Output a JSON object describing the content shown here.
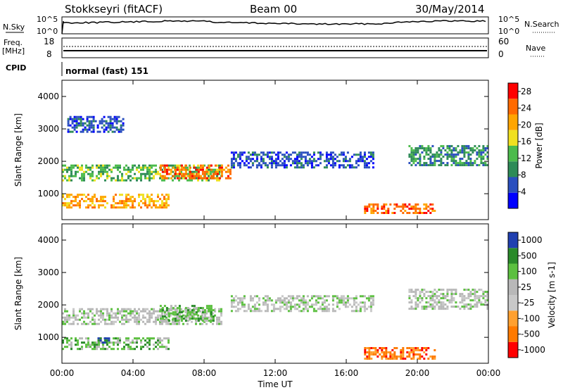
{
  "header": {
    "station": "Stokkseyri (fitACF)",
    "beam": "Beam 00",
    "date": "30/May/2014"
  },
  "labels": {
    "nsky": "N.Sky",
    "nsearch": "N.Search",
    "freq": "Freq.",
    "freq_unit": "[MHz]",
    "nave": "Nave",
    "cpid": "CPID",
    "cpid_value": "normal (fast) 151"
  },
  "noise_ticks": {
    "top": "10^5",
    "bottom": "10^0"
  },
  "freq_ticks": {
    "left_top": "18",
    "left_bottom": "8",
    "right_top": "60",
    "right_bottom": "0"
  },
  "colors": {
    "power": [
      "#0000ff",
      "#2a4fbf",
      "#2e8b57",
      "#4cbb4c",
      "#f0e020",
      "#ffa500",
      "#ff6a00",
      "#ff0000"
    ],
    "velocity": [
      "#2040b0",
      "#2a8a2a",
      "#5cc040",
      "#b8b8b8",
      "#c8c8c8",
      "#ffa030",
      "#ff7a00",
      "#ff0000"
    ]
  },
  "chart_data": [
    {
      "type": "heatmap",
      "title": "Power",
      "ylabel": "Slant Range [km]",
      "xlabel": "",
      "x_ticks": [
        "00:00",
        "04:00",
        "08:00",
        "12:00",
        "16:00",
        "20:00",
        "00:00"
      ],
      "y_ticks": [
        "1000",
        "2000",
        "3000",
        "4000"
      ],
      "ylim": [
        200,
        4500
      ],
      "colorbar": {
        "label": "Power [dB]",
        "ticks": [
          "4",
          "8",
          "12",
          "16",
          "20",
          "24",
          "28"
        ],
        "range": [
          0,
          30
        ]
      },
      "bands": [
        {
          "t0": 0.0,
          "t1": 9.0,
          "r0": 1400,
          "r1": 1900,
          "level": 3
        },
        {
          "t0": 0.0,
          "t1": 6.0,
          "r0": 600,
          "r1": 1000,
          "level": 5
        },
        {
          "t0": 5.5,
          "t1": 9.5,
          "r0": 1500,
          "r1": 1900,
          "level": 6
        },
        {
          "t0": 9.5,
          "t1": 17.5,
          "r0": 1800,
          "r1": 2300,
          "level": 1
        },
        {
          "t0": 17.0,
          "t1": 21.0,
          "r0": 400,
          "r1": 700,
          "level": 6
        },
        {
          "t0": 19.5,
          "t1": 24.0,
          "r0": 1900,
          "r1": 2500,
          "level": 2
        },
        {
          "t0": 0.3,
          "t1": 3.5,
          "r0": 2900,
          "r1": 3400,
          "level": 1
        }
      ]
    },
    {
      "type": "heatmap",
      "title": "Velocity",
      "ylabel": "Slant Range [km]",
      "xlabel": "Time UT",
      "x_ticks": [
        "00:00",
        "04:00",
        "08:00",
        "12:00",
        "16:00",
        "20:00",
        "00:00"
      ],
      "y_ticks": [
        "1000",
        "2000",
        "3000",
        "4000"
      ],
      "ylim": [
        200,
        4500
      ],
      "colorbar": {
        "label": "Velocity [m s-1]",
        "ticks": [
          "1000",
          "500",
          "100",
          "25",
          "-25",
          "-100",
          "-500",
          "-1000"
        ]
      },
      "bands": [
        {
          "t0": 0.0,
          "t1": 9.0,
          "r0": 1400,
          "r1": 1900,
          "level": 3
        },
        {
          "t0": 0.0,
          "t1": 6.0,
          "r0": 650,
          "r1": 1000,
          "level": 2
        },
        {
          "t0": 5.5,
          "t1": 8.5,
          "r0": 1500,
          "r1": 2000,
          "level": 2
        },
        {
          "t0": 9.5,
          "t1": 17.5,
          "r0": 1800,
          "r1": 2300,
          "level": 3
        },
        {
          "t0": 17.0,
          "t1": 21.0,
          "r0": 350,
          "r1": 700,
          "level": 6
        },
        {
          "t0": 19.5,
          "t1": 24.0,
          "r0": 1900,
          "r1": 2500,
          "level": 3
        },
        {
          "t0": 2.0,
          "t1": 2.6,
          "r0": 850,
          "r1": 1000,
          "level": 0
        }
      ]
    }
  ]
}
